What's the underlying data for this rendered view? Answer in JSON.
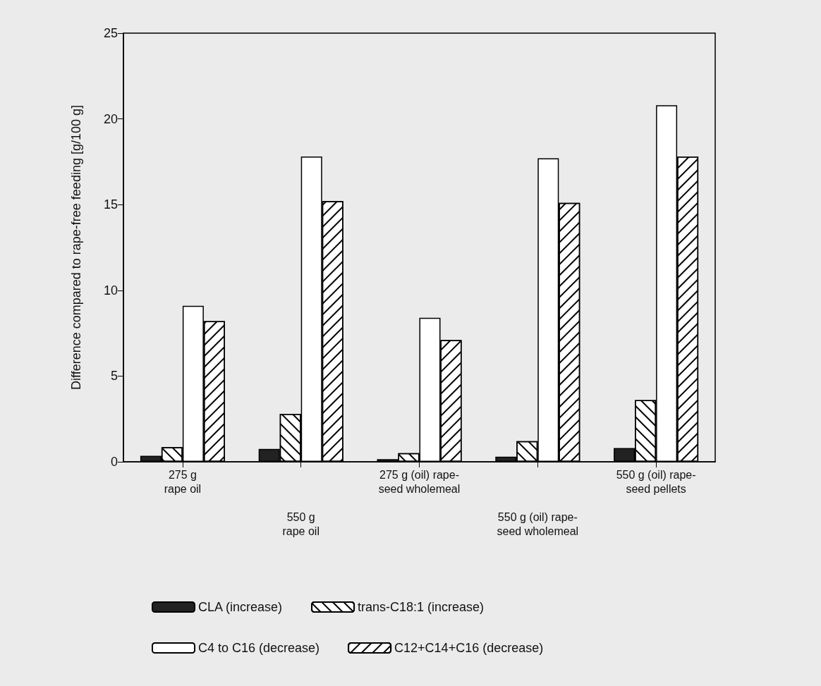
{
  "chart_data": {
    "type": "bar",
    "ylabel": "Difference compared to rape-free feeding [g/100 g]",
    "categories": [
      "275 g\nrape oil",
      "550 g\nrape oil",
      "275 g (oil) rape-\nseed wholemeal",
      "550 g (oil) rape-\nseed wholemeal",
      "550 g (oil) rape-\nseed pellets"
    ],
    "series": [
      {
        "name": "CLA (increase)",
        "color": "#222222",
        "values": [
          0.35,
          0.75,
          0.15,
          0.3,
          0.8
        ]
      },
      {
        "name": "trans-C18:1 (increase)",
        "color": "#ffffff",
        "values": [
          0.85,
          2.8,
          0.5,
          1.2,
          3.6
        ]
      },
      {
        "name": "C4 to C16 (decrease)",
        "color": "#ffffff",
        "values": [
          9.1,
          17.8,
          8.4,
          17.7,
          20.8
        ]
      },
      {
        "name": "C12+C14+C16 (decrease)",
        "color": "#ffffff",
        "values": [
          8.2,
          15.2,
          7.1,
          15.1,
          17.8
        ]
      }
    ],
    "ylim": [
      0,
      25
    ],
    "yticks": [
      0,
      5,
      10,
      15,
      20,
      25
    ],
    "grid": false,
    "legend": "bottom"
  }
}
